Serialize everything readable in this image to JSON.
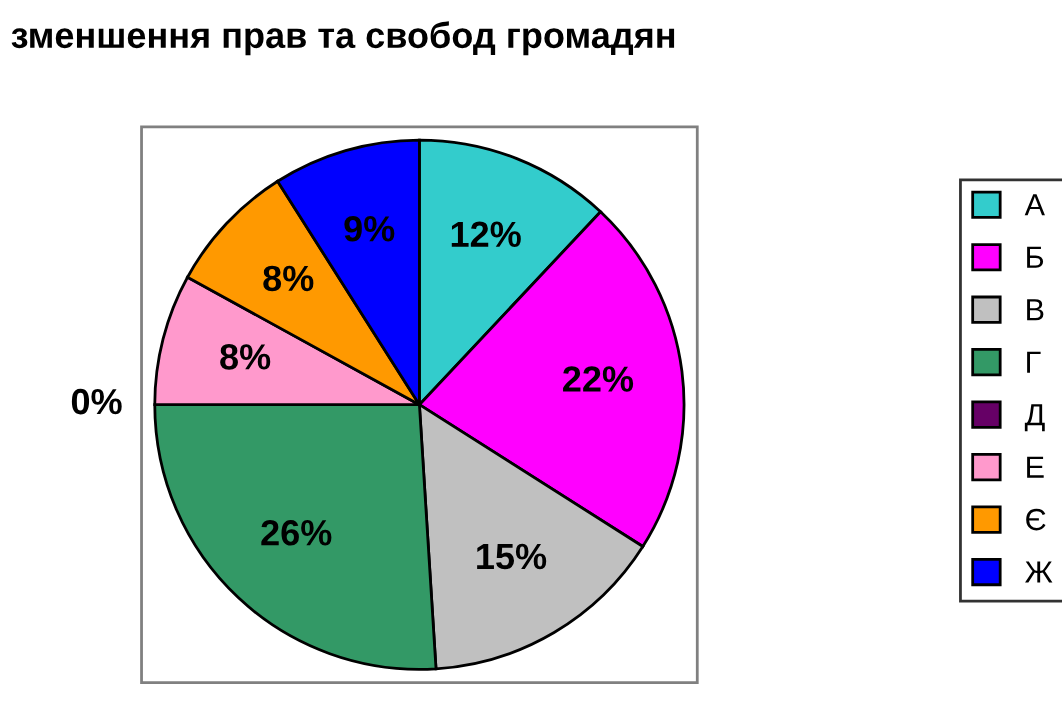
{
  "chart_data": {
    "type": "pie",
    "title": "зменшення прав та свобод громадян",
    "categories": [
      "А",
      "Б",
      "В",
      "Г",
      "Д",
      "Е",
      "Є",
      "Ж"
    ],
    "values": [
      12,
      22,
      15,
      26,
      0,
      8,
      8,
      9
    ],
    "colors": [
      "#33cccc",
      "#ff00ff",
      "#c0c0c0",
      "#339966",
      "#660066",
      "#ff99cc",
      "#ff9900",
      "#0000ff"
    ],
    "value_labels": [
      "12%",
      "22%",
      "15%",
      "26%",
      "0%",
      "8%",
      "8%",
      "9%"
    ],
    "legend": "right"
  }
}
